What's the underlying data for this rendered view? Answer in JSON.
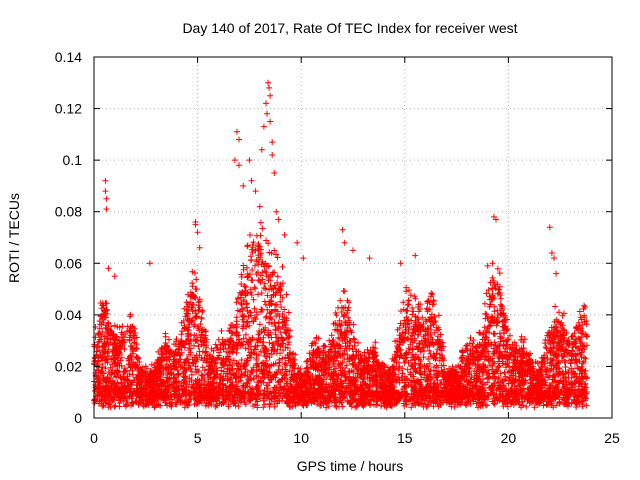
{
  "chart_data": {
    "type": "scatter",
    "title": "Day 140 of 2017, Rate Of TEC Index for receiver west",
    "xlabel": "GPS time / hours",
    "ylabel": "ROTI / TECUs",
    "xlim": [
      0,
      25
    ],
    "ylim": [
      0,
      0.14
    ],
    "xticks": [
      0,
      5,
      10,
      15,
      20,
      25
    ],
    "yticks": [
      0,
      0.02,
      0.04,
      0.06,
      0.08,
      0.1,
      0.12,
      0.14
    ],
    "xtick_labels": [
      "0",
      "5",
      "10",
      "15",
      "20",
      "25"
    ],
    "ytick_labels": [
      "0",
      "0.02",
      "0.04",
      "0.06",
      "0.08",
      "0.1",
      "0.12",
      "0.14"
    ],
    "grid": true,
    "marker": "+",
    "color": "#ff0000",
    "series": [
      {
        "name": "ROTI",
        "x_range": [
          0,
          23.8
        ],
        "outliers": [
          [
            0.55,
            0.092
          ],
          [
            0.55,
            0.088
          ],
          [
            0.6,
            0.085
          ],
          [
            0.6,
            0.081
          ],
          [
            0.7,
            0.058
          ],
          [
            1.0,
            0.055
          ],
          [
            2.7,
            0.06
          ],
          [
            4.9,
            0.076
          ],
          [
            4.9,
            0.075
          ],
          [
            5.0,
            0.072
          ],
          [
            5.1,
            0.066
          ],
          [
            6.8,
            0.1
          ],
          [
            6.9,
            0.111
          ],
          [
            7.0,
            0.108
          ],
          [
            7.0,
            0.098
          ],
          [
            7.2,
            0.09
          ],
          [
            7.5,
            0.1
          ],
          [
            7.6,
            0.092
          ],
          [
            7.8,
            0.088
          ],
          [
            8.0,
            0.082
          ],
          [
            8.1,
            0.104
          ],
          [
            8.2,
            0.113
          ],
          [
            8.3,
            0.122
          ],
          [
            8.35,
            0.118
          ],
          [
            8.4,
            0.13
          ],
          [
            8.45,
            0.128
          ],
          [
            8.5,
            0.125
          ],
          [
            8.5,
            0.115
          ],
          [
            8.6,
            0.107
          ],
          [
            8.6,
            0.102
          ],
          [
            8.7,
            0.095
          ],
          [
            8.8,
            0.08
          ],
          [
            8.9,
            0.077
          ],
          [
            9.2,
            0.071
          ],
          [
            9.8,
            0.068
          ],
          [
            10.1,
            0.062
          ],
          [
            12.0,
            0.073
          ],
          [
            12.1,
            0.068
          ],
          [
            12.5,
            0.065
          ],
          [
            13.3,
            0.062
          ],
          [
            14.8,
            0.06
          ],
          [
            15.5,
            0.063
          ],
          [
            19.3,
            0.078
          ],
          [
            19.4,
            0.077
          ],
          [
            19.0,
            0.059
          ],
          [
            22.0,
            0.074
          ],
          [
            22.1,
            0.064
          ],
          [
            22.2,
            0.062
          ],
          [
            22.3,
            0.056
          ],
          [
            23.7,
            0.043
          ]
        ]
      }
    ]
  }
}
